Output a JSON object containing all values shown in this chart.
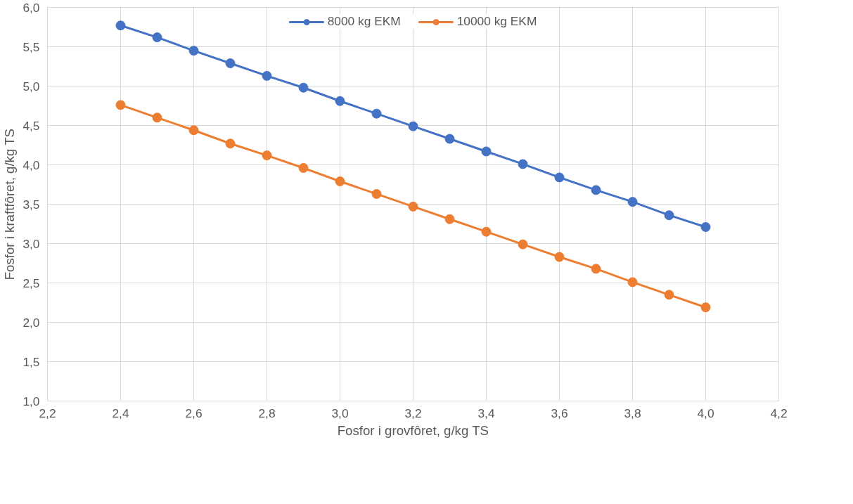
{
  "chart_data": {
    "type": "line",
    "xlabel": "Fosfor i grovfôret, g/kg TS",
    "ylabel": "Fosfor i kraftfôret, g/kg TS",
    "x": [
      2.4,
      2.5,
      2.6,
      2.7,
      2.8,
      2.9,
      3.0,
      3.1,
      3.2,
      3.3,
      3.4,
      3.5,
      3.6,
      3.7,
      3.8,
      3.9,
      4.0
    ],
    "series": [
      {
        "name": "8000 kg EKM",
        "color": "#4472c4",
        "values": [
          5.77,
          5.62,
          5.45,
          5.29,
          5.13,
          4.98,
          4.81,
          4.65,
          4.49,
          4.33,
          4.17,
          4.01,
          3.84,
          3.68,
          3.53,
          3.36,
          3.21
        ]
      },
      {
        "name": "10000 kg EKM",
        "color": "#ed7d31",
        "values": [
          4.76,
          4.6,
          4.44,
          4.27,
          4.12,
          3.96,
          3.79,
          3.63,
          3.47,
          3.31,
          3.15,
          2.99,
          2.83,
          2.68,
          2.51,
          2.35,
          2.19
        ]
      }
    ],
    "xlim": [
      2.2,
      4.2
    ],
    "xticks": [
      {
        "value": 2.2,
        "label": "2,2"
      },
      {
        "value": 2.4,
        "label": "2,4"
      },
      {
        "value": 2.6,
        "label": "2,6"
      },
      {
        "value": 2.8,
        "label": "2,8"
      },
      {
        "value": 3.0,
        "label": "3,0"
      },
      {
        "value": 3.2,
        "label": "3,2"
      },
      {
        "value": 3.4,
        "label": "3,4"
      },
      {
        "value": 3.6,
        "label": "3,6"
      },
      {
        "value": 3.8,
        "label": "3,8"
      },
      {
        "value": 4.0,
        "label": "4,0"
      },
      {
        "value": 4.2,
        "label": "4,2"
      }
    ],
    "ylim": [
      1.0,
      6.0
    ],
    "yticks": [
      {
        "value": 1.0,
        "label": "1,0"
      },
      {
        "value": 1.5,
        "label": "1,5"
      },
      {
        "value": 2.0,
        "label": "2,0"
      },
      {
        "value": 2.5,
        "label": "2,5"
      },
      {
        "value": 3.0,
        "label": "3,0"
      },
      {
        "value": 3.5,
        "label": "3,5"
      },
      {
        "value": 4.0,
        "label": "4,0"
      },
      {
        "value": 4.5,
        "label": "4,5"
      },
      {
        "value": 5.0,
        "label": "5,0"
      },
      {
        "value": 5.5,
        "label": "5,5"
      },
      {
        "value": 6.0,
        "label": "6,0"
      }
    ],
    "grid": true,
    "legend": "top",
    "marker": "circle",
    "line_style": "solid"
  }
}
